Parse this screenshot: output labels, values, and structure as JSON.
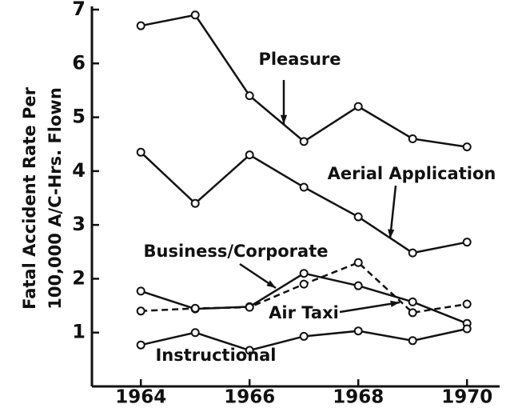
{
  "chart_data": {
    "type": "line",
    "y_label": [
      "Fatal Accident Rate Per",
      "100,000 A/C-Hrs. Flown"
    ],
    "x": [
      1964,
      1965,
      1966,
      1967,
      1968,
      1969,
      1970
    ],
    "xlim": [
      1963.1,
      1970.6
    ],
    "xticks": [
      1964,
      1966,
      1968,
      1970
    ],
    "ylim": [
      0,
      7
    ],
    "yticks": [
      1,
      2,
      3,
      4,
      5,
      6,
      7
    ],
    "series": [
      {
        "name": "Pleasure",
        "color": "#111111",
        "style": "solid",
        "values": [
          6.7,
          6.9,
          5.4,
          4.55,
          5.2,
          4.6,
          4.45
        ]
      },
      {
        "name": "Aerial Application",
        "color": "#111111",
        "style": "solid",
        "values": [
          4.35,
          3.4,
          4.3,
          3.7,
          3.15,
          2.48,
          2.68
        ]
      },
      {
        "name": "Business/Corporate",
        "color": "#111111",
        "style": "solid",
        "values": [
          1.77,
          1.44,
          1.48,
          2.1,
          1.87,
          1.57,
          1.17
        ]
      },
      {
        "name": "Air Taxi",
        "color": "#111111",
        "style": "dashed",
        "values": [
          1.4,
          1.45,
          1.47,
          1.9,
          2.3,
          1.37,
          1.53
        ]
      },
      {
        "name": "Instructional",
        "color": "#111111",
        "style": "solid",
        "values": [
          0.77,
          1.0,
          0.67,
          0.93,
          1.03,
          0.85,
          1.07
        ]
      }
    ]
  }
}
